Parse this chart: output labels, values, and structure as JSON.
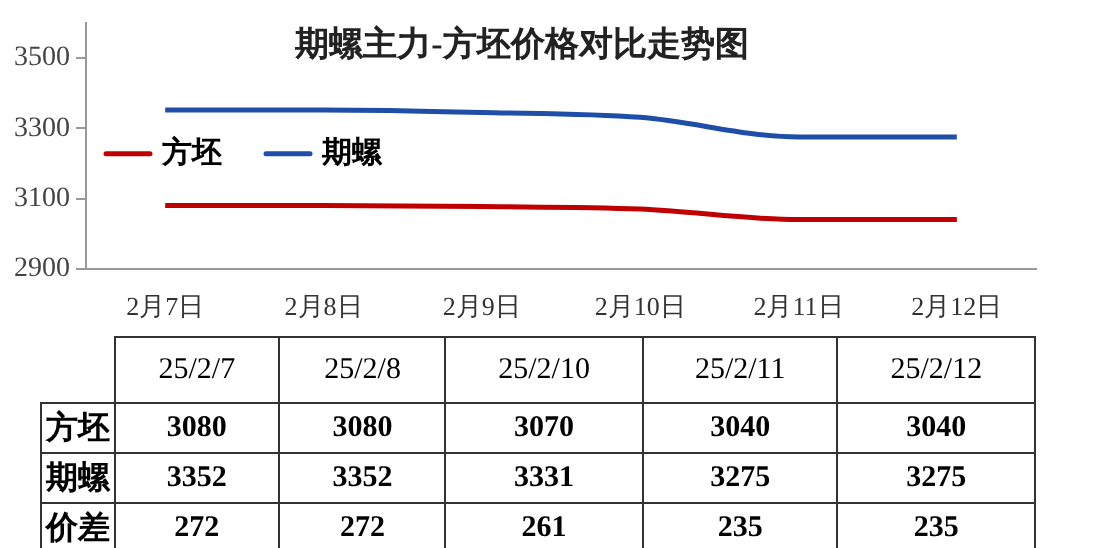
{
  "chart_data": [
    {
      "type": "line",
      "title": "期螺主力-方坯价格对比走势图",
      "categories": [
        "2月7日",
        "2月8日",
        "2月9日",
        "2月10日",
        "2月11日",
        "2月12日"
      ],
      "series": [
        {
          "name": "方坯",
          "color": "#c00000",
          "values": [
            3080,
            3080,
            3077,
            3070,
            3040,
            3040
          ]
        },
        {
          "name": "期螺",
          "color": "#1f4ea8",
          "values": [
            3352,
            3352,
            3345,
            3331,
            3275,
            3275
          ]
        }
      ],
      "ylim": [
        2900,
        3600
      ],
      "yticks": [
        2900,
        3100,
        3300,
        3500
      ],
      "grid": false,
      "legend": "left",
      "marker": "none",
      "line_style": "solid"
    },
    {
      "type": "other",
      "categories": [
        "25/2/7",
        "25/2/8",
        "25/2/10",
        "25/2/11",
        "25/2/12"
      ],
      "series": [
        {
          "name": "方坯",
          "values": [
            3080,
            3080,
            3070,
            3040,
            3040
          ]
        },
        {
          "name": "期螺",
          "values": [
            3352,
            3352,
            3331,
            3275,
            3275
          ]
        },
        {
          "name": "价差",
          "values": [
            272,
            272,
            261,
            235,
            235
          ]
        }
      ],
      "data_labels": true
    }
  ]
}
